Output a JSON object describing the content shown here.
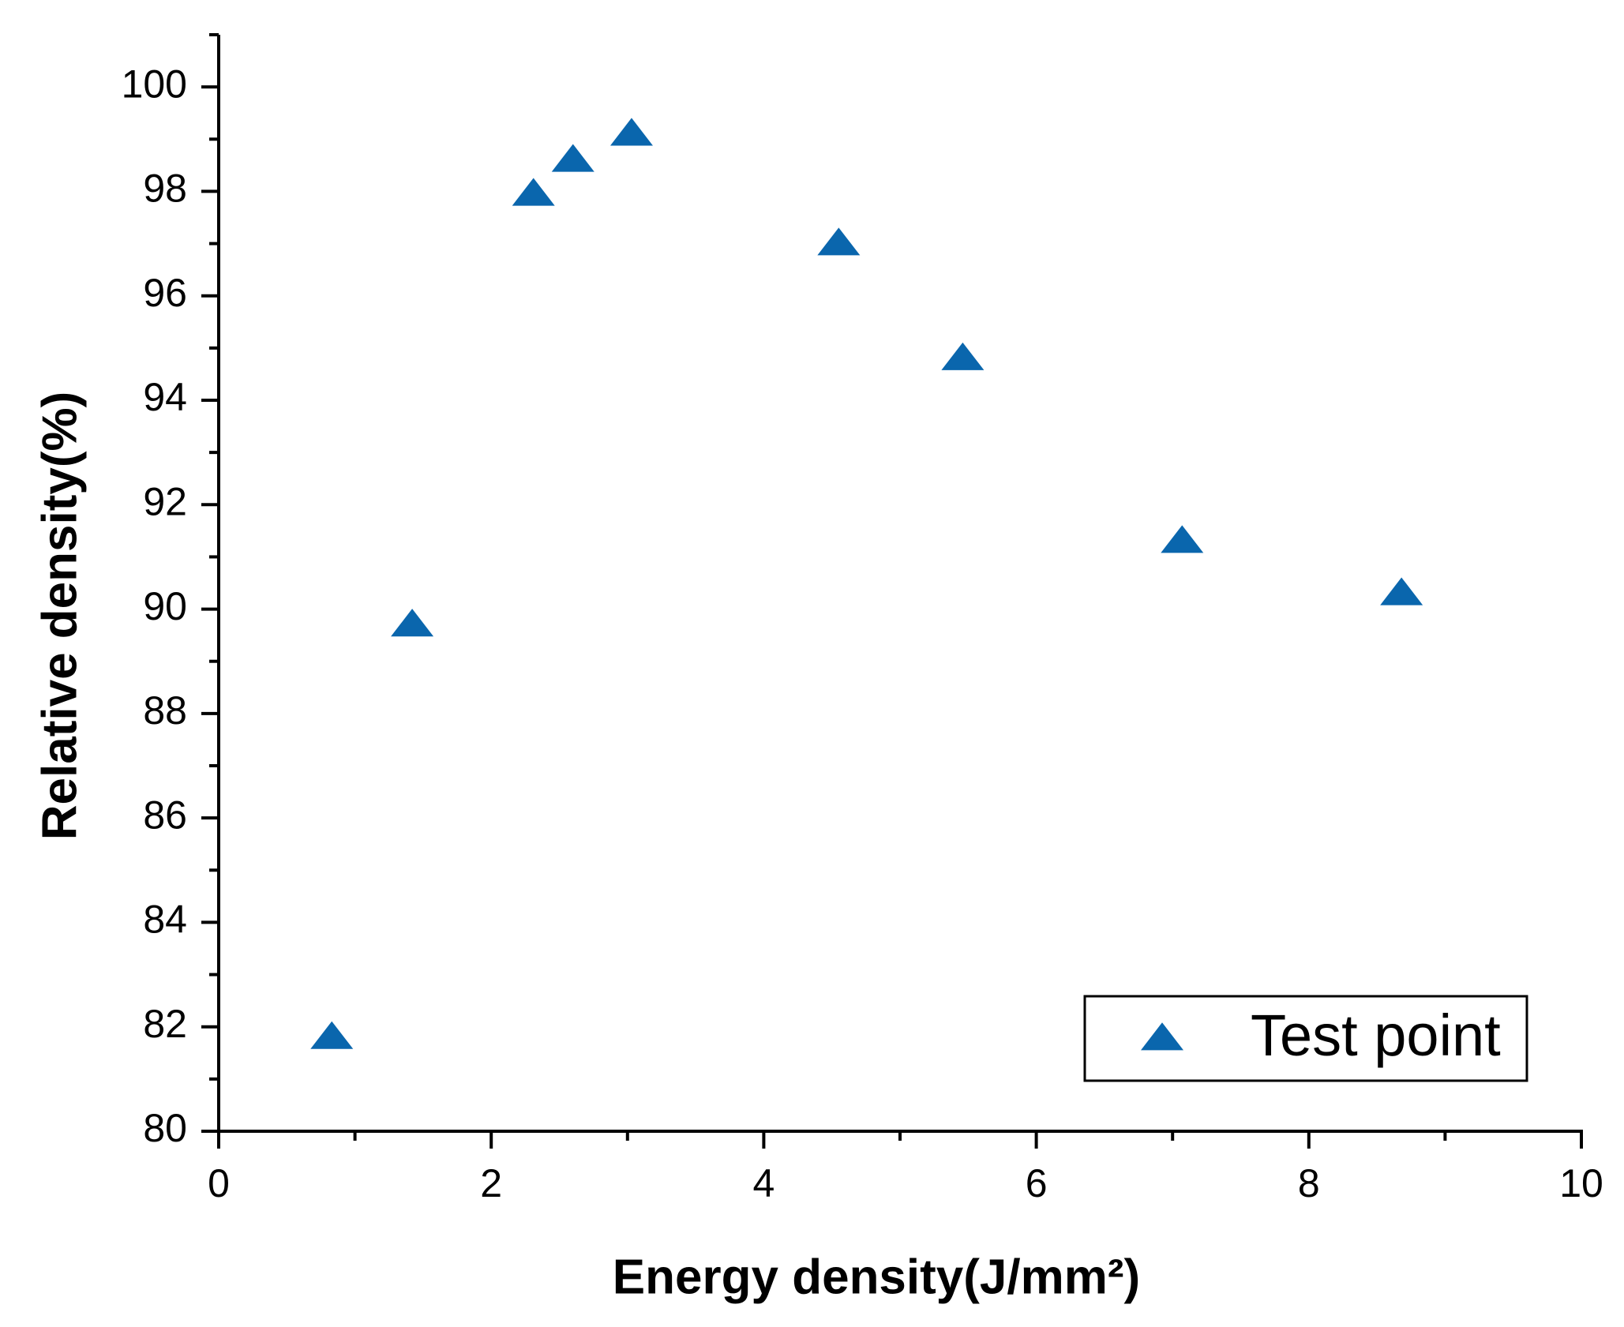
{
  "chart_data": {
    "type": "scatter",
    "x_label": "Energy density(J/mm²)",
    "y_label": "Relative density(%)",
    "series": [
      {
        "name": "Test point",
        "color": "#0a66ad",
        "x": [
          0.83,
          1.42,
          2.31,
          2.6,
          3.03,
          4.55,
          5.46,
          7.07,
          8.68
        ],
        "values": [
          81.8,
          89.7,
          97.95,
          98.6,
          99.1,
          97.0,
          94.8,
          91.3,
          90.3
        ]
      }
    ],
    "xlim": [
      0,
      10
    ],
    "xticks": [
      0,
      2,
      4,
      6,
      8,
      10
    ],
    "ylim": [
      80,
      101
    ],
    "yticks": [
      80,
      82,
      84,
      86,
      88,
      90,
      92,
      94,
      96,
      98,
      100
    ],
    "legend": "lower-right"
  }
}
